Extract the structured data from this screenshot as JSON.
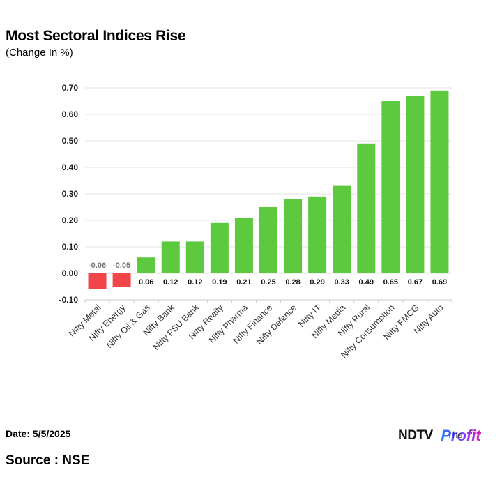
{
  "header": {
    "title": "Most Sectoral Indices Rise",
    "subtitle": "(Change In %)"
  },
  "footer": {
    "date": "Date: 5/5/2025",
    "source": "Source : NSE",
    "brand_ndtv": "NDTV",
    "brand_profit": "Profit",
    "brand_overlay": "The"
  },
  "colors": {
    "positive": "#5cc93e",
    "negative": "#f2454a",
    "grid": "#e3e3e3",
    "axis": "#cccccc"
  },
  "chart_data": {
    "type": "bar",
    "title": "Most Sectoral Indices Rise",
    "subtitle": "(Change In %)",
    "xlabel": "",
    "ylabel": "",
    "ylim": [
      -0.1,
      0.7
    ],
    "yticks": [
      "0.70",
      "0.60",
      "0.50",
      "0.40",
      "0.30",
      "0.20",
      "0.10",
      "0.00",
      "-0.10"
    ],
    "yticks_values": [
      0.7,
      0.6,
      0.5,
      0.4,
      0.3,
      0.2,
      0.1,
      0.0,
      -0.1
    ],
    "grid": true,
    "categories": [
      "Nifty Metal",
      "Nifty Energy",
      "Nifty Oil & Gas",
      "Nifty Bank",
      "Nifty PSU Bank",
      "Nifty Realty",
      "Nifty Pharma",
      "Nifty Finance",
      "Nifty Defence",
      "Nifty IT",
      "Nifty Media",
      "Nifty Rural",
      "Nifty Consumption",
      "Nifty FMCG",
      "Nifty Auto"
    ],
    "values": [
      -0.06,
      -0.05,
      0.06,
      0.12,
      0.12,
      0.19,
      0.21,
      0.25,
      0.28,
      0.29,
      0.33,
      0.49,
      0.65,
      0.67,
      0.69
    ],
    "labels": [
      "-0.06",
      "-0.05",
      "0.06",
      "0.12",
      "0.12",
      "0.19",
      "0.21",
      "0.25",
      "0.28",
      "0.29",
      "0.33",
      "0.49",
      "0.65",
      "0.67",
      "0.69"
    ]
  }
}
